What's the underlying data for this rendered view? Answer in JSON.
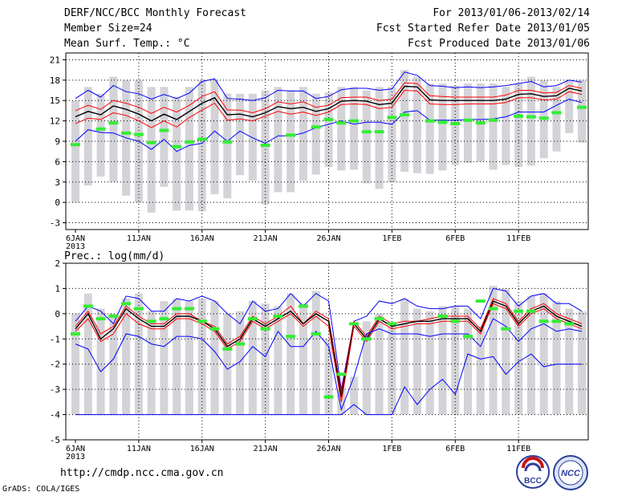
{
  "header": {
    "title": "DERF/NCC/BCC Monthly Forecast",
    "period": "For 2013/01/06-2013/02/14",
    "member_size": "Member Size=24",
    "started": "Fcst Started Refer Date 2013/01/05",
    "variable": "Mean Surf. Temp.: °C",
    "produced": "Fcst Produced Date 2013/01/06"
  },
  "footer": {
    "url": "http://cmdp.ncc.cma.gov.cn",
    "credit": "GrADS: COLA/IGES"
  },
  "logos": {
    "left_text": "BCC",
    "right_text": "NCC"
  },
  "colors": {
    "bar": "#d3d3d8",
    "median": "#000000",
    "quartile": "#ff0000",
    "extreme": "#0000ff",
    "observed": "#33ee33",
    "grid": "#000000"
  },
  "chart_data": [
    {
      "type": "line",
      "title": "Mean Surf. Temp.: °C",
      "ylim": [
        -4,
        22
      ],
      "yticks": [
        -3,
        0,
        3,
        6,
        9,
        12,
        15,
        18,
        21
      ],
      "xticks": [
        "6JAN",
        "11JAN",
        "16JAN",
        "21JAN",
        "26JAN",
        "1FEB",
        "6FEB",
        "11FEB"
      ],
      "xtick_year": "2013",
      "bar_low": [
        0,
        2.5,
        3.8,
        3,
        1,
        0,
        -1.5,
        2.3,
        -1.2,
        -1.2,
        -1.3,
        1.2,
        0.6,
        4,
        3.2,
        -0.3,
        1.5,
        1.5,
        3.2,
        4.1,
        5.2,
        4.7,
        4.8,
        2.8,
        2,
        3,
        4.5,
        4.3,
        4.2,
        4.7,
        5.5,
        5.8,
        6,
        4.8,
        5.5,
        5.2,
        5.4,
        6.5,
        7.5,
        10.2,
        8.8
      ],
      "bar_high": [
        15,
        17,
        16,
        18.5,
        18,
        18,
        17,
        17,
        15.5,
        17,
        18,
        18,
        16,
        16,
        16,
        16.5,
        17,
        16.5,
        17,
        16,
        16.2,
        17,
        17,
        16.5,
        17,
        17,
        19.5,
        18.5,
        17.5,
        17.5,
        17.2,
        17.5,
        17.5,
        17.5,
        17,
        17.5,
        18.5,
        18,
        17,
        18,
        18
      ],
      "series": [
        {
          "name": "max",
          "values": [
            15.3,
            16.5,
            15.5,
            17.2,
            16.3,
            16,
            15.2,
            15.9,
            15.3,
            16.1,
            17.8,
            18.2,
            15.3,
            15.2,
            15,
            15.4,
            16.5,
            16.4,
            16.4,
            15.3,
            15.6,
            16.6,
            16.8,
            16.8,
            16.5,
            16.7,
            19.2,
            18.7,
            17.2,
            17.1,
            16.9,
            17,
            16.9,
            17,
            17.2,
            17.5,
            17.8,
            17,
            17.2,
            18,
            17.7
          ]
        },
        {
          "name": "q75",
          "values": [
            13.5,
            14.3,
            13.7,
            15,
            14.6,
            14,
            13.1,
            14,
            13.3,
            14.3,
            15.6,
            16.3,
            13.6,
            13.6,
            13.2,
            13.8,
            14.8,
            14.5,
            14.8,
            14,
            14.3,
            15.4,
            15.5,
            15.5,
            15,
            15.2,
            17.6,
            17.5,
            15.7,
            15.6,
            15.5,
            15.5,
            15.5,
            15.5,
            15.8,
            16.5,
            16.5,
            16.1,
            16.2,
            17.2,
            16.8
          ]
        },
        {
          "name": "median",
          "values": [
            12.6,
            13.4,
            12.9,
            14.2,
            13.7,
            13,
            12,
            13,
            12.2,
            13.4,
            14.6,
            15.4,
            12.9,
            13,
            12.6,
            13.2,
            14.1,
            13.8,
            14,
            13.4,
            13.8,
            14.9,
            15,
            14.9,
            14.4,
            14.6,
            17.1,
            17,
            15.1,
            15,
            15,
            15,
            15,
            15,
            15.2,
            15.9,
            16,
            15.6,
            15.7,
            16.8,
            16.4
          ]
        },
        {
          "name": "q25",
          "values": [
            11.6,
            12.4,
            12.2,
            13.2,
            12.8,
            12,
            11,
            12,
            11.1,
            12.5,
            13.6,
            14.6,
            12.1,
            12.3,
            12,
            12.7,
            13.4,
            13,
            13.3,
            12.8,
            13.3,
            14.4,
            14.5,
            14.4,
            13.8,
            14,
            16.5,
            16.4,
            14.5,
            14.4,
            14.4,
            14.5,
            14.5,
            14.5,
            14.7,
            15.4,
            15.4,
            15.1,
            15.2,
            16.3,
            15.9
          ]
        },
        {
          "name": "min",
          "values": [
            9,
            10.7,
            10.3,
            10.2,
            9.5,
            9,
            7.8,
            9.3,
            7.5,
            8.4,
            8.7,
            10.5,
            9,
            10.5,
            9.5,
            8.7,
            9.8,
            9.8,
            10.2,
            11,
            11.5,
            12,
            11.5,
            11.8,
            11.8,
            11.5,
            13.3,
            13.5,
            12.1,
            12.1,
            12.1,
            12.2,
            12.2,
            12.3,
            12.6,
            13.3,
            13.3,
            13.3,
            14.3,
            15.2,
            14.7
          ]
        },
        {
          "name": "observed",
          "values": [
            8.5,
            null,
            10.8,
            11.7,
            10.2,
            10,
            8.8,
            10.6,
            8.2,
            8.9,
            9.3,
            null,
            8.9,
            null,
            null,
            8.4,
            null,
            9.9,
            null,
            11.1,
            12.2,
            11.7,
            12,
            10.4,
            10.4,
            12.5,
            12.9,
            null,
            12,
            11.8,
            11.6,
            12.1,
            11.7,
            12.1,
            null,
            12.7,
            12.6,
            12.4,
            13.2,
            null,
            14
          ]
        }
      ]
    },
    {
      "type": "line",
      "title": "Prec.: log(mm/d)",
      "ylim": [
        -5,
        2
      ],
      "yticks": [
        -5,
        -4,
        -3,
        -2,
        -1,
        0,
        1,
        2
      ],
      "xticks": [
        "6JAN",
        "11JAN",
        "16JAN",
        "21JAN",
        "26JAN",
        "1FEB",
        "6FEB",
        "11FEB"
      ],
      "xtick_year": "2013",
      "bar_low": [
        -4,
        -4,
        -4,
        -4,
        -4,
        -4,
        -4,
        -4,
        -4,
        -4,
        -4,
        -4,
        -4,
        -4,
        -4,
        -4,
        -4,
        -4,
        -4,
        -4,
        -4,
        -4,
        -4,
        -4,
        -4,
        -4,
        -4,
        -4,
        -4,
        -4,
        -4,
        -4,
        -4,
        -4,
        -4,
        -4,
        -4,
        -4,
        -4,
        -4,
        -4
      ],
      "bar_high": [
        0,
        0.8,
        0.2,
        0,
        0.6,
        0.8,
        0.1,
        0.5,
        0.6,
        0.5,
        0.6,
        0.5,
        0,
        0.1,
        0.5,
        0.4,
        0.3,
        0.8,
        0.4,
        0.9,
        -1,
        -3,
        -2.5,
        -0.3,
        0,
        -0.5,
        0.6,
        0.2,
        0.1,
        0.3,
        0.3,
        0.2,
        -0.5,
        1.1,
        1,
        0.5,
        0.7,
        0.8,
        0.5,
        0.2,
        0.1
      ],
      "series": [
        {
          "name": "max",
          "values": [
            -0.3,
            0.3,
            0.1,
            -0.4,
            0.7,
            0.6,
            0.1,
            0.1,
            0.6,
            0.5,
            0.7,
            0.5,
            0,
            -0.4,
            0.5,
            0.1,
            0.2,
            0.8,
            0.3,
            0.8,
            0.5,
            -3,
            -0.3,
            -0.1,
            0.5,
            0.4,
            0.6,
            0.3,
            0.2,
            0.2,
            0.3,
            0.3,
            -0.2,
            1,
            0.9,
            0.3,
            0.7,
            0.8,
            0.4,
            0.4,
            0.1
          ]
        },
        {
          "name": "q75",
          "values": [
            -0.5,
            0.1,
            -0.8,
            -0.5,
            0.3,
            -0.1,
            -0.4,
            -0.4,
            0,
            0,
            -0.3,
            -0.5,
            -1.2,
            -0.9,
            -0.1,
            -0.4,
            -0.1,
            0.3,
            -0.4,
            0.1,
            -0.2,
            -3.1,
            -0.3,
            -0.9,
            -0.1,
            -0.4,
            -0.3,
            -0.3,
            -0.2,
            -0.1,
            -0.1,
            -0.1,
            -0.6,
            0.6,
            0.4,
            -0.3,
            0.2,
            0.4,
            0,
            -0.2,
            -0.4
          ]
        },
        {
          "name": "median",
          "values": [
            -0.6,
            0,
            -1,
            -0.6,
            0.2,
            -0.2,
            -0.5,
            -0.5,
            -0.1,
            -0.1,
            -0.3,
            -0.6,
            -1.3,
            -1,
            -0.2,
            -0.5,
            -0.2,
            0.1,
            -0.4,
            0,
            -0.3,
            -3.3,
            -0.4,
            -1,
            -0.2,
            -0.5,
            -0.4,
            -0.3,
            -0.3,
            -0.2,
            -0.2,
            -0.2,
            -0.7,
            0.5,
            0.3,
            -0.4,
            0.1,
            0.3,
            -0.1,
            -0.3,
            -0.5
          ]
        },
        {
          "name": "q25",
          "values": [
            -0.7,
            -0.2,
            -1.1,
            -0.8,
            0,
            -0.4,
            -0.6,
            -0.6,
            -0.2,
            -0.2,
            -0.4,
            -0.7,
            -1.4,
            -1.1,
            -0.3,
            -0.6,
            -0.3,
            0,
            -0.5,
            -0.1,
            -0.5,
            -3.5,
            -0.5,
            -1.1,
            -0.3,
            -0.6,
            -0.5,
            -0.4,
            -0.4,
            -0.3,
            -0.3,
            -0.3,
            -0.8,
            0.4,
            0.2,
            -0.5,
            0,
            0.2,
            -0.2,
            -0.4,
            -0.6
          ]
        },
        {
          "name": "min",
          "values": [
            -1.2,
            -1.4,
            -2.3,
            -1.8,
            -0.8,
            -0.9,
            -1.2,
            -1.3,
            -0.9,
            -0.9,
            -1,
            -1.5,
            -2.2,
            -1.9,
            -1.3,
            -1.7,
            -0.7,
            -1.3,
            -1.3,
            -0.7,
            -1.3,
            -3.8,
            -2.5,
            -0.8,
            -0.6,
            -0.8,
            -0.8,
            -0.8,
            -0.9,
            -0.8,
            -0.8,
            -0.8,
            -1.3,
            -0.2,
            -0.5,
            -1.1,
            -0.6,
            -0.4,
            -0.7,
            -0.6,
            -0.7
          ]
        },
        {
          "name": "floor",
          "values": [
            -4,
            -4,
            -4,
            -4,
            -4,
            -4,
            -4,
            -4,
            -4,
            -4,
            -4,
            -4,
            -4,
            -4,
            -4,
            -4,
            -4,
            -4,
            -4,
            -4,
            -4,
            -4,
            -3.6,
            -4,
            -4,
            -4,
            -2.9,
            -3.6,
            -3,
            -2.6,
            -3.2,
            -1.6,
            -1.8,
            -1.7,
            -2.4,
            -1.9,
            -1.6,
            -2.1,
            -2,
            -2,
            -2
          ]
        },
        {
          "name": "observed",
          "values": [
            -0.8,
            0.3,
            -0.2,
            -0.1,
            0.4,
            0.2,
            -0.3,
            -0.2,
            0.2,
            0.2,
            -0.3,
            -0.6,
            -1.4,
            -1.2,
            -0.2,
            -0.6,
            -0.1,
            -0.9,
            0.3,
            -0.8,
            -3.3,
            -2.4,
            -0.4,
            -1,
            -0.2,
            -0.4,
            null,
            null,
            null,
            -0.1,
            -0.3,
            -0.9,
            0.5,
            0.2,
            -0.6,
            0.1,
            0.1,
            -0.3,
            -0.3,
            -0.4,
            null
          ]
        }
      ]
    }
  ]
}
